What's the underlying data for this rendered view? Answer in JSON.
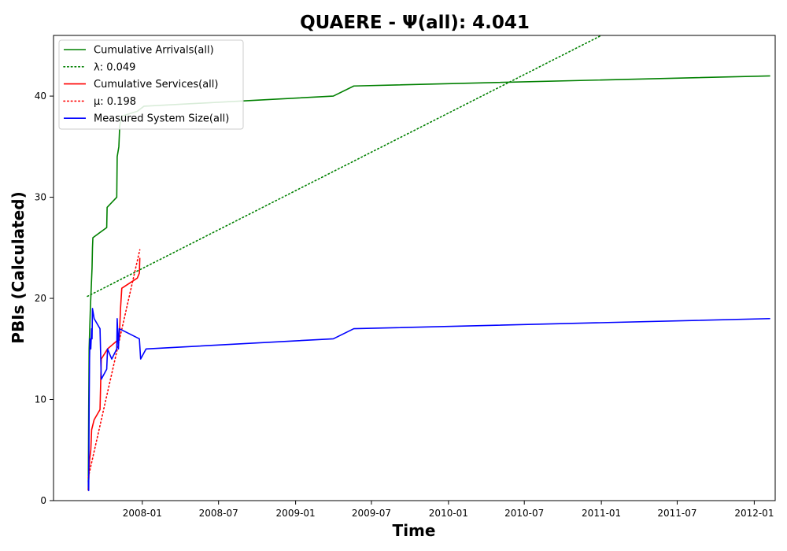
{
  "chart_data": {
    "type": "line",
    "title": "QUAERE -  Ψ(all): 4.041",
    "xlabel": "Time",
    "ylabel": "PBIs (Calculated)",
    "xlim": [
      "2007-06-03",
      "2012-02-20"
    ],
    "ylim": [
      0,
      46
    ],
    "x_ticks": [
      "2008-01",
      "2008-07",
      "2009-01",
      "2009-07",
      "2010-01",
      "2010-07",
      "2011-01",
      "2011-07",
      "2012-01"
    ],
    "y_ticks": [
      0,
      10,
      20,
      30,
      40
    ],
    "grid": false,
    "legend_position": "upper left",
    "series": [
      {
        "name": "Cumulative Arrivals(all)",
        "style": "solid",
        "color": "#008000",
        "points": [
          [
            "2007-08-25",
            1
          ],
          [
            "2007-08-26",
            9
          ],
          [
            "2007-08-27",
            15
          ],
          [
            "2007-08-30",
            19
          ],
          [
            "2007-09-02",
            22
          ],
          [
            "2007-09-03",
            23
          ],
          [
            "2007-09-04",
            25
          ],
          [
            "2007-09-05",
            26
          ],
          [
            "2007-10-08",
            27
          ],
          [
            "2007-10-09",
            29
          ],
          [
            "2007-11-01",
            30
          ],
          [
            "2007-11-02",
            34
          ],
          [
            "2007-11-06",
            35
          ],
          [
            "2007-11-07",
            36
          ],
          [
            "2007-11-08",
            37
          ],
          [
            "2007-11-12",
            38
          ],
          [
            "2007-12-20",
            38.5
          ],
          [
            "2008-01-05",
            39
          ],
          [
            "2009-04-01",
            40
          ],
          [
            "2009-05-20",
            41
          ],
          [
            "2012-02-08",
            42
          ]
        ]
      },
      {
        "name": "λ: 0.049",
        "style": "dotted",
        "color": "#008000",
        "points": [
          [
            "2007-08-23",
            20.2
          ],
          [
            "2011-01-01",
            46
          ]
        ]
      },
      {
        "name": "Cumulative Services(all)",
        "style": "solid",
        "color": "#ff0000",
        "points": [
          [
            "2007-08-25",
            1
          ],
          [
            "2007-08-26",
            2
          ],
          [
            "2007-08-28",
            4
          ],
          [
            "2007-08-31",
            5
          ],
          [
            "2007-09-02",
            7
          ],
          [
            "2007-09-08",
            8
          ],
          [
            "2007-09-22",
            9
          ],
          [
            "2007-09-25",
            14
          ],
          [
            "2007-10-10",
            15
          ],
          [
            "2007-11-07",
            16
          ],
          [
            "2007-11-10",
            19
          ],
          [
            "2007-11-13",
            21
          ],
          [
            "2007-12-20",
            22
          ],
          [
            "2007-12-25",
            22.5
          ],
          [
            "2007-12-26",
            24
          ]
        ]
      },
      {
        "name": "μ: 0.198",
        "style": "dotted",
        "color": "#ff0000",
        "points": [
          [
            "2007-08-25",
            2.3
          ],
          [
            "2007-12-26",
            24.8
          ]
        ]
      },
      {
        "name": "Measured System Size(all)",
        "style": "solid",
        "color": "#0000ff",
        "points": [
          [
            "2007-08-25",
            2
          ],
          [
            "2007-08-26",
            1
          ],
          [
            "2007-08-27",
            9
          ],
          [
            "2007-08-28",
            14
          ],
          [
            "2007-08-29",
            16
          ],
          [
            "2007-08-31",
            15
          ],
          [
            "2007-09-02",
            17
          ],
          [
            "2007-09-03",
            16
          ],
          [
            "2007-09-04",
            19
          ],
          [
            "2007-09-08",
            18
          ],
          [
            "2007-09-22",
            17
          ],
          [
            "2007-09-25",
            12
          ],
          [
            "2007-10-08",
            13
          ],
          [
            "2007-10-10",
            15
          ],
          [
            "2007-10-20",
            14
          ],
          [
            "2007-11-01",
            15
          ],
          [
            "2007-11-02",
            18
          ],
          [
            "2007-11-05",
            15
          ],
          [
            "2007-11-07",
            17
          ],
          [
            "2007-12-25",
            16
          ],
          [
            "2007-12-28",
            14
          ],
          [
            "2008-01-10",
            15
          ],
          [
            "2009-04-01",
            16
          ],
          [
            "2009-05-20",
            17
          ],
          [
            "2012-02-08",
            18
          ]
        ]
      }
    ]
  }
}
